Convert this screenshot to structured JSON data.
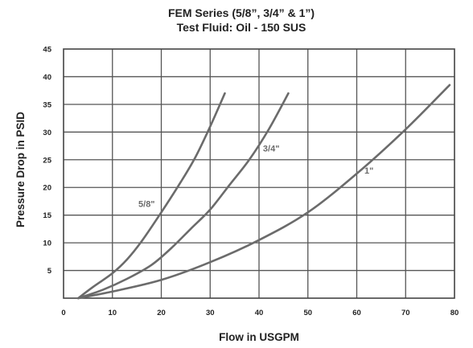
{
  "chart_data": {
    "type": "line",
    "title": "FEM Series (5/8”, 3/4” & 1”)",
    "subtitle": "Test Fluid: Oil - 150 SUS",
    "xlabel": "Flow in USGPM",
    "ylabel": "Pressure Drop in PSID",
    "xlim": [
      0,
      80
    ],
    "ylim": [
      0,
      45
    ],
    "x_ticks": [
      "0",
      "10",
      "20",
      "30",
      "40",
      "50",
      "60",
      "70",
      "80"
    ],
    "y_ticks": [
      "5",
      "10",
      "15",
      "20",
      "25",
      "30",
      "35",
      "40",
      "45"
    ],
    "grid": true,
    "line_color": "#6b6b6b",
    "label_color": "#6b6b6b",
    "series": [
      {
        "name": "5/8\"",
        "label_at": [
          17,
          16.5
        ],
        "points": [
          [
            3,
            0
          ],
          [
            6,
            2
          ],
          [
            10,
            4.5
          ],
          [
            13,
            7
          ],
          [
            16,
            10.3
          ],
          [
            20,
            15.5
          ],
          [
            24,
            21
          ],
          [
            27,
            25.5
          ],
          [
            30,
            31
          ],
          [
            33,
            37
          ]
        ]
      },
      {
        "name": "3/4\"",
        "label_at": [
          42.5,
          26.5
        ],
        "points": [
          [
            3,
            0
          ],
          [
            8,
            1.5
          ],
          [
            13,
            3.5
          ],
          [
            18,
            6
          ],
          [
            22,
            9
          ],
          [
            26,
            12.5
          ],
          [
            30,
            16
          ],
          [
            34,
            20.5
          ],
          [
            38,
            25
          ],
          [
            42,
            30.5
          ],
          [
            46,
            37
          ]
        ]
      },
      {
        "name": "1\"",
        "label_at": [
          62.5,
          22.5
        ],
        "points": [
          [
            3,
            0
          ],
          [
            10,
            1.2
          ],
          [
            20,
            3.3
          ],
          [
            30,
            6.5
          ],
          [
            40,
            10.5
          ],
          [
            50,
            15.5
          ],
          [
            60,
            22.5
          ],
          [
            70,
            30.5
          ],
          [
            79,
            38.5
          ]
        ]
      }
    ]
  }
}
